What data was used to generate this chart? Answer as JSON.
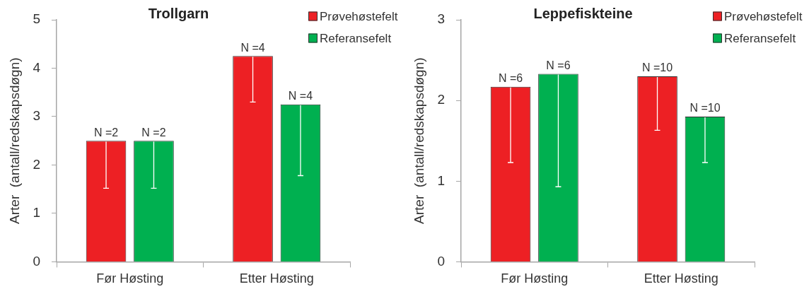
{
  "chart_data": [
    {
      "type": "bar",
      "title": "Trollgarn",
      "ylabel": "Arter  (antall/redskapsdøgn)",
      "categories": [
        "Før Høsting",
        "Etter Høsting"
      ],
      "series": [
        {
          "name": "Prøvehøstefelt",
          "color": "#ed2024",
          "values": [
            2.5,
            4.25
          ],
          "errors": [
            [
              1.52,
              2.5
            ],
            [
              3.3,
              4.25
            ]
          ]
        },
        {
          "name": "Referansefelt",
          "color": "#00b050",
          "values": [
            2.5,
            3.25
          ],
          "errors": [
            [
              1.52,
              2.5
            ],
            [
              1.78,
              3.25
            ]
          ]
        }
      ],
      "annotations": [
        "N =2",
        "N =2",
        "N =4",
        "N =4"
      ],
      "ylim": [
        0,
        5
      ],
      "yticks": [
        0,
        1,
        2,
        3,
        4,
        5
      ],
      "legend": "top right"
    },
    {
      "type": "bar",
      "title": "Leppefiskteine",
      "ylabel": "Arter  (antall/redskapsdøgn)",
      "categories": [
        "Før Høsting",
        "Etter Høsting"
      ],
      "series": [
        {
          "name": "Prøvehøstefelt",
          "color": "#ed2024",
          "values": [
            2.17,
            2.3
          ],
          "errors": [
            [
              1.23,
              2.17
            ],
            [
              1.63,
              2.3
            ]
          ]
        },
        {
          "name": "Referansefelt",
          "color": "#00b050",
          "values": [
            2.33,
            1.8
          ],
          "errors": [
            [
              0.93,
              2.33
            ],
            [
              1.23,
              1.8
            ]
          ]
        }
      ],
      "annotations": [
        "N =6",
        "N =6",
        "N =10",
        "N =10"
      ],
      "ylim": [
        0,
        3
      ],
      "yticks": [
        0,
        1,
        2,
        3
      ],
      "legend": "top right"
    }
  ]
}
